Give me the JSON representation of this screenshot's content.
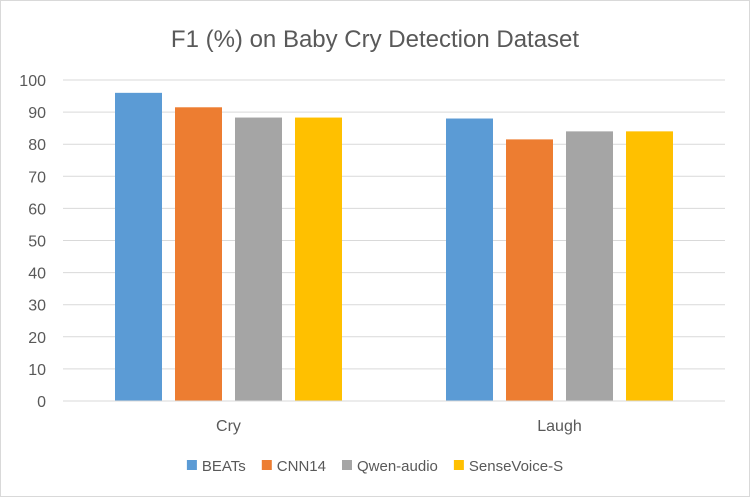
{
  "chart_data": {
    "type": "bar",
    "title": "F1 (%) on Baby Cry Detection Dataset",
    "xlabel": "",
    "ylabel": "",
    "categories": [
      "Cry",
      "Laugh"
    ],
    "ylim": [
      0,
      100
    ],
    "yticks": [
      0,
      10,
      20,
      30,
      40,
      50,
      60,
      70,
      80,
      90,
      100
    ],
    "grid": true,
    "legend_position": "bottom",
    "series": [
      {
        "name": "BEATs",
        "color": "#5b9bd5",
        "values": [
          96,
          88
        ]
      },
      {
        "name": "CNN14",
        "color": "#ed7d31",
        "values": [
          91.5,
          81.5
        ]
      },
      {
        "name": "Qwen-audio",
        "color": "#a5a5a5",
        "values": [
          88.3,
          84
        ]
      },
      {
        "name": "SenseVoice-S",
        "color": "#ffc000",
        "values": [
          88.3,
          84
        ]
      }
    ]
  }
}
